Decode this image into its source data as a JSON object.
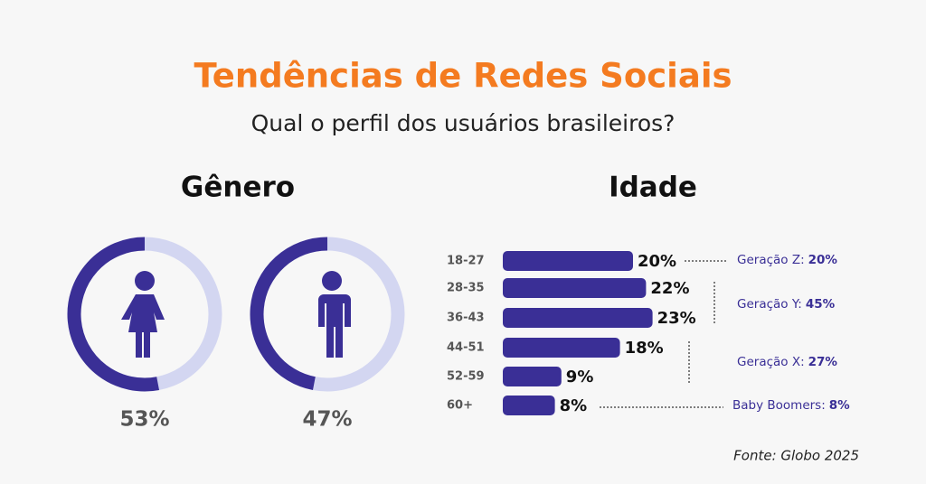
{
  "title": "Tendências de Redes Sociais",
  "subtitle": "Qual o perfil dos usuários brasileiros?",
  "source": "Fonte: Globo 2025",
  "chart_data": [
    {
      "type": "donut",
      "title": "Gênero",
      "values": [
        53,
        47
      ],
      "value_labels": [
        "53%",
        "47%"
      ],
      "color": "#3a2f96",
      "track_color": "#d3d6f1"
    },
    {
      "type": "bar",
      "title": "Idade",
      "categories": [
        "18-27",
        "28-35",
        "36-43",
        "44-51",
        "52-59",
        "60+"
      ],
      "values": [
        20,
        22,
        23,
        18,
        9,
        8
      ],
      "value_labels": [
        "20%",
        "22%",
        "23%",
        "18%",
        "9%",
        "8%"
      ],
      "color": "#3a2f96",
      "annotations": [
        {
          "label": "Geração Z:",
          "value": "20%"
        },
        {
          "label": "Geração Y:",
          "value": "45%"
        },
        {
          "label": "Geração X:",
          "value": "27%"
        },
        {
          "label": "Baby Boomers:",
          "value": "8%"
        }
      ]
    }
  ]
}
